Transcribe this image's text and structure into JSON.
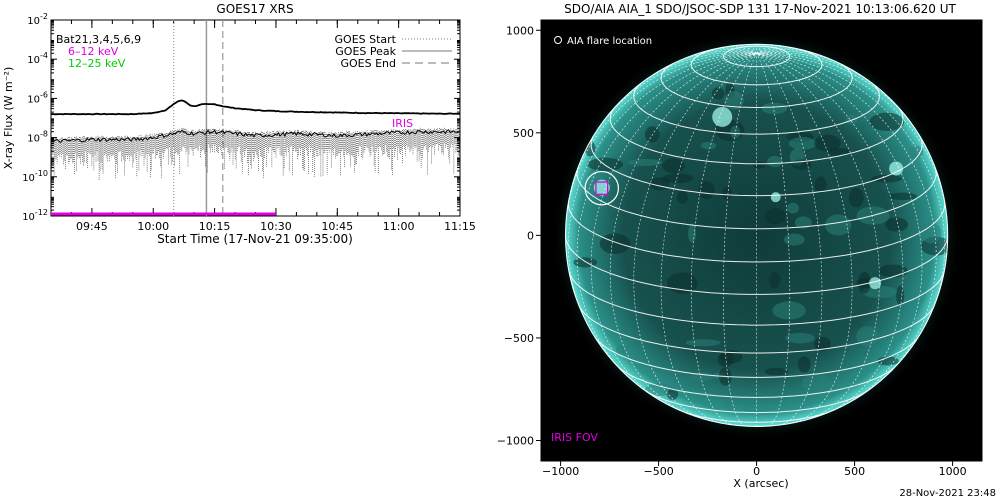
{
  "left_panel": {
    "title": "GOES17 XRS",
    "ylabel": "X-ray Flux (W m⁻²)",
    "xlabel": "Start Time (17-Nov-21 09:35:00)",
    "legend_series": [
      {
        "label": "Bat21,3,4,5,6,9",
        "color": "#000000"
      },
      {
        "label": "6–12 keV",
        "color": "#e000e0"
      },
      {
        "label": "12–25 keV",
        "color": "#00cc00"
      }
    ],
    "legend_lines": [
      {
        "label": "GOES Start",
        "style": "dotted"
      },
      {
        "label": "GOES Peak",
        "style": "solid"
      },
      {
        "label": "GOES End",
        "style": "dashed"
      }
    ],
    "iris_label": "IRIS"
  },
  "right_panel": {
    "title": "SDO/AIA AIA_1 SDO/JSOC-SDP 131 17-Nov-2021 10:13:06.620 UT",
    "legend": "AIA flare location",
    "iris_fov": "IRIS FOV",
    "xlabel": "X (arcsec)"
  },
  "footer_timestamp": "28-Nov-2021 23:48",
  "chart_data": [
    {
      "type": "line",
      "title": "GOES17 XRS",
      "xlabel": "Start Time (17-Nov-21 09:35:00)",
      "ylabel": "X-ray Flux (W m⁻²)",
      "yscale": "log",
      "ylim": [
        1e-12,
        0.01
      ],
      "xlim_minutes_after_0935": [
        0,
        100
      ],
      "x_tick_labels": [
        "09:45",
        "10:00",
        "10:15",
        "10:30",
        "10:45",
        "11:00",
        "11:15"
      ],
      "x_tick_minutes": [
        10,
        25,
        40,
        55,
        70,
        85,
        100
      ],
      "y_tick_exponents": [
        -12,
        -10,
        -8,
        -6,
        -4,
        -2
      ],
      "vertical_markers": [
        {
          "name": "GOES Start",
          "time": "10:05",
          "minute": 30,
          "style": "dotted"
        },
        {
          "name": "GOES Peak",
          "time": "10:13",
          "minute": 38,
          "style": "solid"
        },
        {
          "name": "GOES End",
          "time": "10:17",
          "minute": 42,
          "style": "dashed"
        }
      ],
      "series": [
        {
          "name": "GOES long channel",
          "color": "#000000",
          "x_minutes": [
            0,
            5,
            10,
            15,
            20,
            25,
            28,
            30,
            31,
            32,
            33,
            34,
            35,
            36,
            37,
            38,
            39,
            40,
            41,
            42,
            45,
            50,
            55,
            60,
            65,
            70,
            75,
            80,
            85,
            90,
            95,
            100
          ],
          "y_exponent": [
            -6.8,
            -6.8,
            -6.8,
            -6.8,
            -6.8,
            -6.75,
            -6.6,
            -6.3,
            -6.15,
            -6.1,
            -6.2,
            -6.35,
            -6.4,
            -6.35,
            -6.3,
            -6.3,
            -6.3,
            -6.3,
            -6.35,
            -6.4,
            -6.5,
            -6.6,
            -6.65,
            -6.68,
            -6.7,
            -6.72,
            -6.74,
            -6.75,
            -6.76,
            -6.77,
            -6.78,
            -6.78
          ]
        },
        {
          "name": "GOES short channel",
          "color": "#000000",
          "style": "noisy",
          "x_minutes": [
            0,
            10,
            20,
            25,
            30,
            32,
            35,
            40,
            45,
            50,
            60,
            70,
            80,
            90,
            100
          ],
          "y_exponent": [
            -8.5,
            -8.4,
            -8.4,
            -8.3,
            -8.1,
            -8.0,
            -8.1,
            -8.0,
            -8.1,
            -8.2,
            -8.1,
            -8.2,
            -8.1,
            -8.0,
            -8.0
          ]
        },
        {
          "name": "IRIS coverage",
          "color": "#e000e0",
          "x_minutes": [
            0,
            55
          ],
          "y_exponent": [
            -11.9,
            -11.9
          ]
        }
      ]
    },
    {
      "type": "scatter",
      "title": "SDO/AIA AIA_1 SDO/JSOC-SDP 131 17-Nov-2021 10:13:06.620 UT",
      "xlabel": "X (arcsec)",
      "ylabel": "",
      "xlim": [
        -1100,
        1150
      ],
      "ylim": [
        -1100,
        1050
      ],
      "x_ticks": [
        -1000,
        -500,
        0,
        500,
        1000
      ],
      "y_ticks": [
        -1000,
        -500,
        0,
        500,
        1000
      ],
      "solar_radius_arcsec": 975,
      "grid_spacing_deg": 10,
      "flare_location": {
        "x": -790,
        "y": 230,
        "radius": 85
      },
      "iris_fov": {
        "x": -790,
        "y": 230,
        "half_width": 30
      }
    }
  ]
}
